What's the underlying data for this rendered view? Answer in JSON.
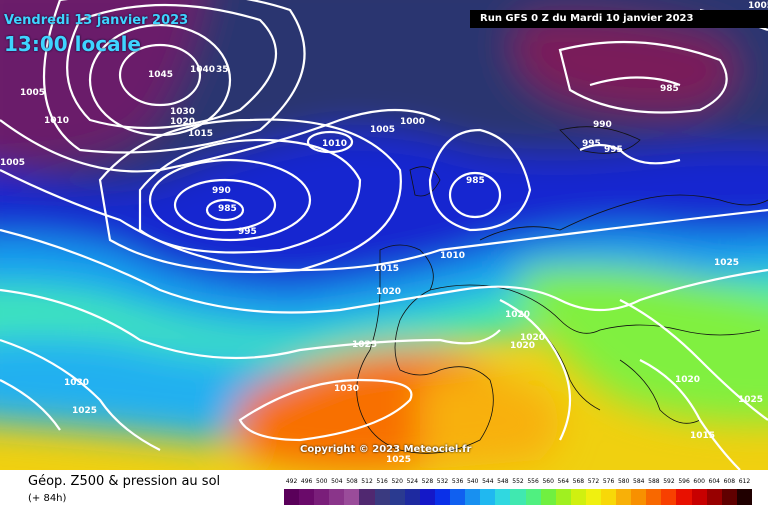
{
  "header": {
    "date": "Vendredi 13 janvier 2023",
    "time": "13:00 locale",
    "run": "Run GFS 0 Z du Mardi 10 janvier 2023",
    "copyright": "Copyright © 2023 Meteociel.fr"
  },
  "footer": {
    "title": "Géop. Z500 & pression au sol",
    "subtitle": "(+ 84h)"
  },
  "isobar_labels": [
    "1005",
    "1045",
    "1040",
    "35",
    "1030",
    "1020",
    "1015",
    "1010",
    "1005",
    "1005",
    "990",
    "985",
    "995",
    "1010",
    "1005",
    "1000",
    "985",
    "990",
    "995",
    "995",
    "985",
    "1010",
    "1015",
    "1020",
    "1025",
    "1020",
    "1025",
    "1030",
    "1030",
    "1025",
    "1020",
    "1020",
    "1025",
    "1020",
    "1015",
    "1025"
  ],
  "legend": {
    "values": [
      "492",
      "496",
      "500",
      "504",
      "508",
      "512",
      "516",
      "520",
      "524",
      "528",
      "532",
      "536",
      "540",
      "544",
      "548",
      "552",
      "556",
      "560",
      "564",
      "568",
      "572",
      "576",
      "580",
      "584",
      "588",
      "592",
      "596",
      "600",
      "604",
      "608",
      "612"
    ],
    "colors": [
      "#5a005a",
      "#6a0a6a",
      "#7a1e7a",
      "#8a358a",
      "#9a4c9a",
      "#502870",
      "#3a3a80",
      "#2a3a90",
      "#1e2aa0",
      "#1418c8",
      "#0a30e8",
      "#1060f0",
      "#1890f0",
      "#20b8f0",
      "#30d8e0",
      "#40e8b0",
      "#50f080",
      "#70f040",
      "#a0f020",
      "#d0f010",
      "#f0f010",
      "#f8d808",
      "#f8b008",
      "#f89000",
      "#f86800",
      "#f84000",
      "#e81000",
      "#c80000",
      "#980000",
      "#600000",
      "#200000"
    ]
  }
}
